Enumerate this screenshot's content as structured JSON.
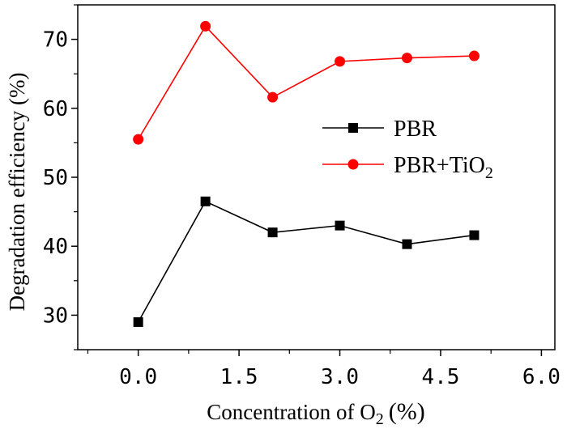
{
  "chart_data": {
    "type": "line",
    "xlabel": {
      "base": "Concentration of O",
      "sub": "2",
      "unit": "(%)"
    },
    "ylabel": "Degradation efficiency (%)",
    "xlim": [
      -0.9,
      6.2
    ],
    "ylim": [
      25,
      75
    ],
    "xticks": [
      0.0,
      1.5,
      3.0,
      4.5,
      6.0
    ],
    "xtick_labels": [
      "0.0",
      "1.5",
      "3.0",
      "4.5",
      "6.0"
    ],
    "yticks": [
      30,
      40,
      50,
      60,
      70
    ],
    "ytick_labels": [
      "30",
      "40",
      "50",
      "60",
      "70"
    ],
    "grid": false,
    "legend_position": "right-middle",
    "series": [
      {
        "name": "PBR",
        "name_sub": "",
        "color": "#000000",
        "marker": "square",
        "x": [
          0,
          1,
          2,
          3,
          4,
          5
        ],
        "y": [
          29.0,
          46.5,
          42.0,
          43.0,
          40.3,
          41.6
        ]
      },
      {
        "name": "PBR+TiO",
        "name_sub": "2",
        "color": "#ff0000",
        "marker": "circle",
        "x": [
          0,
          1,
          2,
          3,
          4,
          5
        ],
        "y": [
          55.5,
          71.9,
          61.6,
          66.8,
          67.3,
          67.6
        ]
      }
    ]
  }
}
